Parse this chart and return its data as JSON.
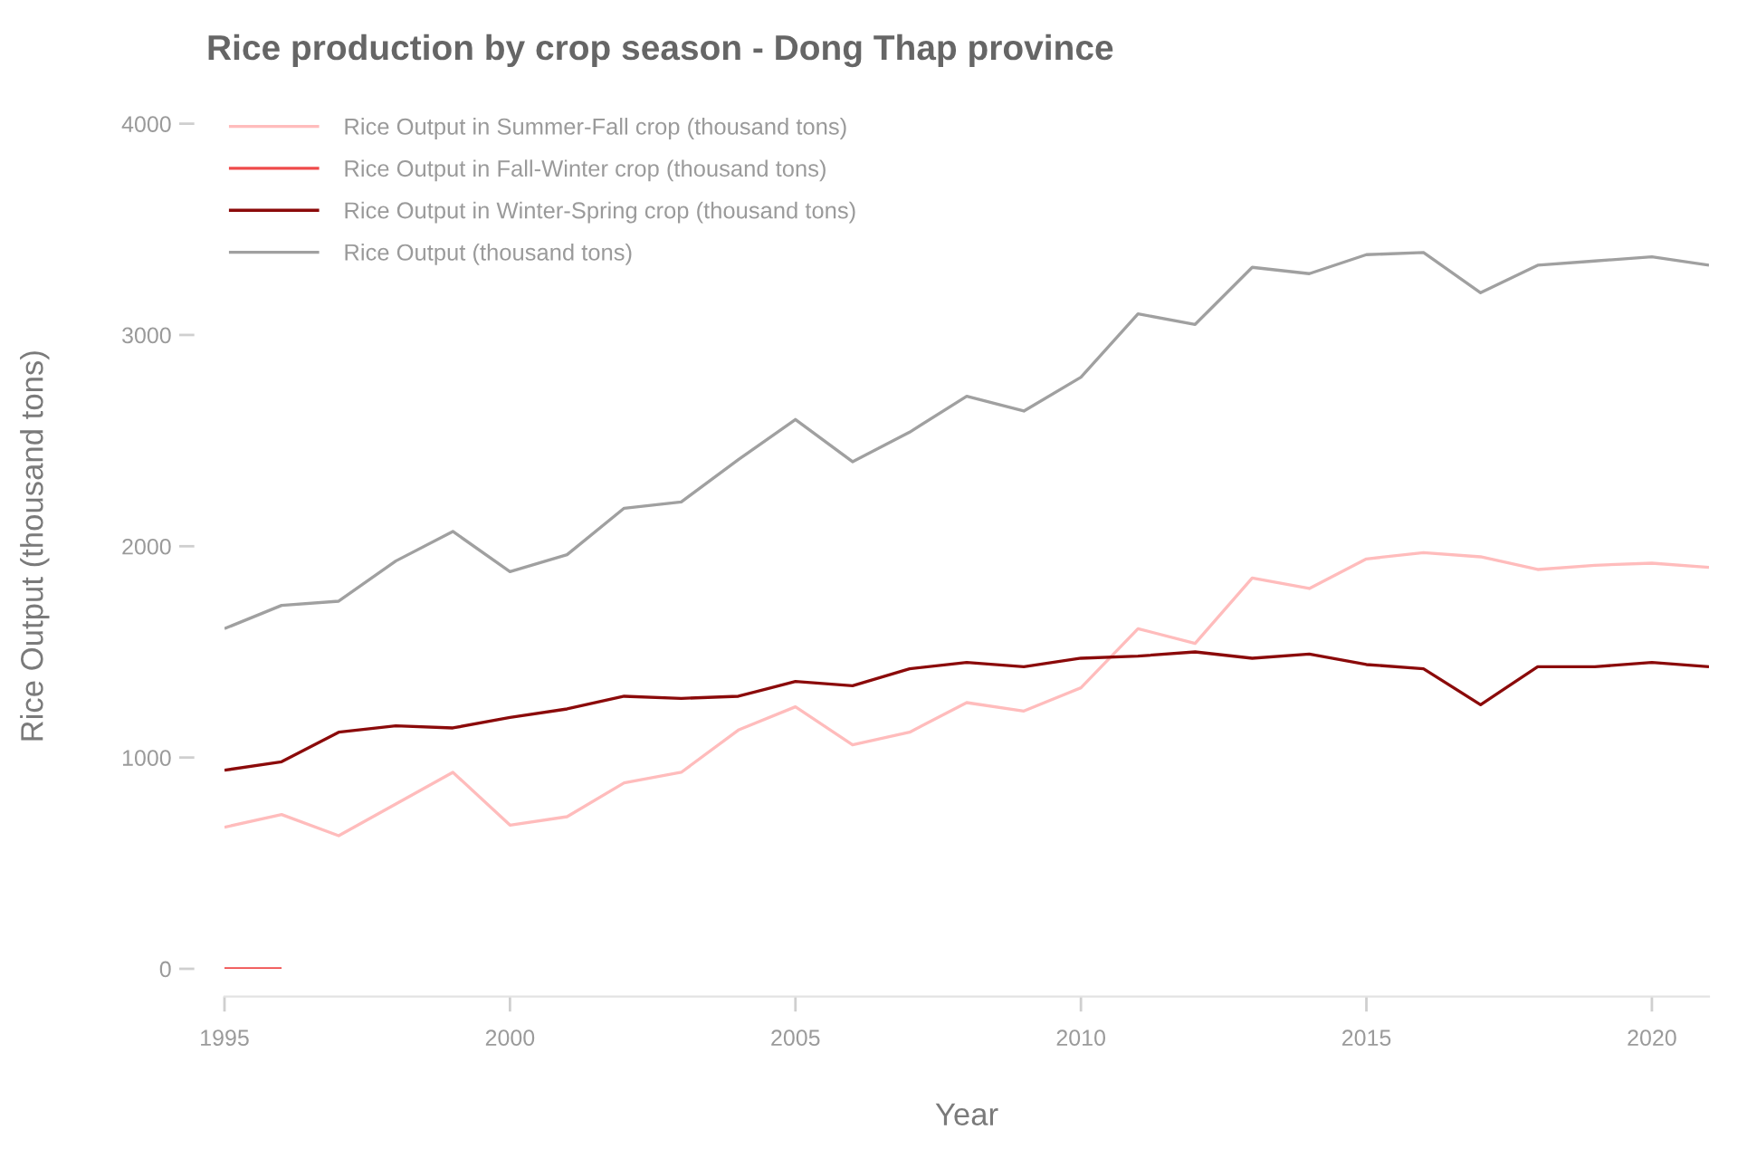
{
  "chart_data": {
    "type": "line",
    "title": "Rice production by crop season - Dong Thap province",
    "xlabel": "Year",
    "ylabel": "Rice Output (thousand tons)",
    "x": [
      1995,
      1996,
      1997,
      1998,
      1999,
      2000,
      2001,
      2002,
      2003,
      2004,
      2005,
      2006,
      2007,
      2008,
      2009,
      2010,
      2011,
      2012,
      2013,
      2014,
      2015,
      2016,
      2017,
      2018,
      2019,
      2020,
      2021
    ],
    "xlim": [
      1995,
      2021
    ],
    "xticks": [
      1995,
      2000,
      2005,
      2010,
      2015,
      2020
    ],
    "ylim": [
      0,
      4000
    ],
    "yticks": [
      0,
      1000,
      2000,
      3000,
      4000
    ],
    "legend": "top left",
    "marker": "none",
    "line_style": "solid",
    "series": [
      {
        "name": "Rice Output in Summer-Fall crop (thousand tons)",
        "color": "#ffbcbc",
        "values": [
          670,
          730,
          630,
          780,
          930,
          680,
          720,
          880,
          930,
          1130,
          1240,
          1060,
          1120,
          1260,
          1220,
          1330,
          1610,
          1540,
          1850,
          1800,
          1940,
          1970,
          1950,
          1890,
          1910,
          1920,
          1900
        ]
      },
      {
        "name": "Rice Output in Fall-Winter crop (thousand tons)",
        "color": "#ef4b4b",
        "values": [
          0,
          0,
          null,
          null,
          null,
          null,
          null,
          null,
          null,
          null,
          null,
          null,
          null,
          null,
          null,
          null,
          null,
          null,
          null,
          null,
          null,
          null,
          null,
          null,
          null,
          null,
          null
        ]
      },
      {
        "name": "Rice Output in Winter-Spring crop (thousand tons)",
        "color": "#8b0a0a",
        "values": [
          940,
          980,
          1120,
          1150,
          1140,
          1190,
          1230,
          1290,
          1280,
          1290,
          1360,
          1340,
          1420,
          1450,
          1430,
          1470,
          1480,
          1500,
          1470,
          1490,
          1440,
          1420,
          1250,
          1430,
          1430,
          1450,
          1430
        ]
      },
      {
        "name": "Rice Output (thousand tons)",
        "color": "#a0a0a0",
        "values": [
          1610,
          1720,
          1740,
          1930,
          2070,
          1880,
          1960,
          2180,
          2210,
          2410,
          2600,
          2400,
          2540,
          2710,
          2640,
          2800,
          3100,
          3050,
          3320,
          3290,
          3380,
          3390,
          3200,
          3330,
          3350,
          3370,
          3330
        ]
      }
    ]
  }
}
